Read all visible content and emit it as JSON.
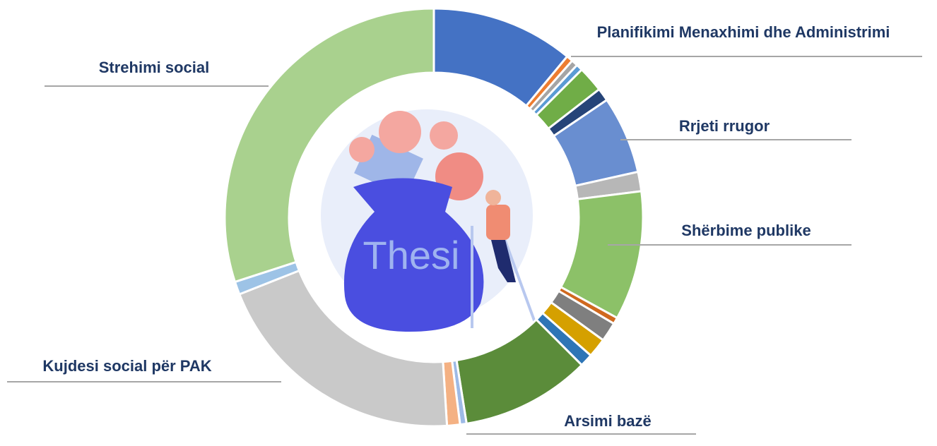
{
  "chart_data": {
    "type": "donut",
    "center_text": "Thesi",
    "categories": [
      "Planifikimi Menaxhimi dhe Administrimi",
      null,
      null,
      null,
      null,
      null,
      "Rrjeti rrugor",
      null,
      "Shërbime publike",
      null,
      null,
      null,
      null,
      "Arsimi bazë",
      null,
      null,
      "Kujdesi social për PAK",
      null,
      "Strehimi social"
    ],
    "values": [
      11,
      0.5,
      0.5,
      0.5,
      2,
      1,
      6,
      1.5,
      10,
      0.5,
      1.5,
      1.5,
      1,
      10,
      0.5,
      1,
      20,
      1,
      30
    ],
    "colors": [
      "#4472c4",
      "#ed7d31",
      "#a5a5a5",
      "#5b9bd5",
      "#70ad47",
      "#264478",
      "#698ed0",
      "#b7b7b7",
      "#8cc168",
      "#d0691e",
      "#7f7f7f",
      "#d5a000",
      "#2e75b6",
      "#5b8c3a",
      "#9dbae6",
      "#f4b183",
      "#c9c9c9",
      "#9dc3e6",
      "#a9d18e"
    ]
  }
}
